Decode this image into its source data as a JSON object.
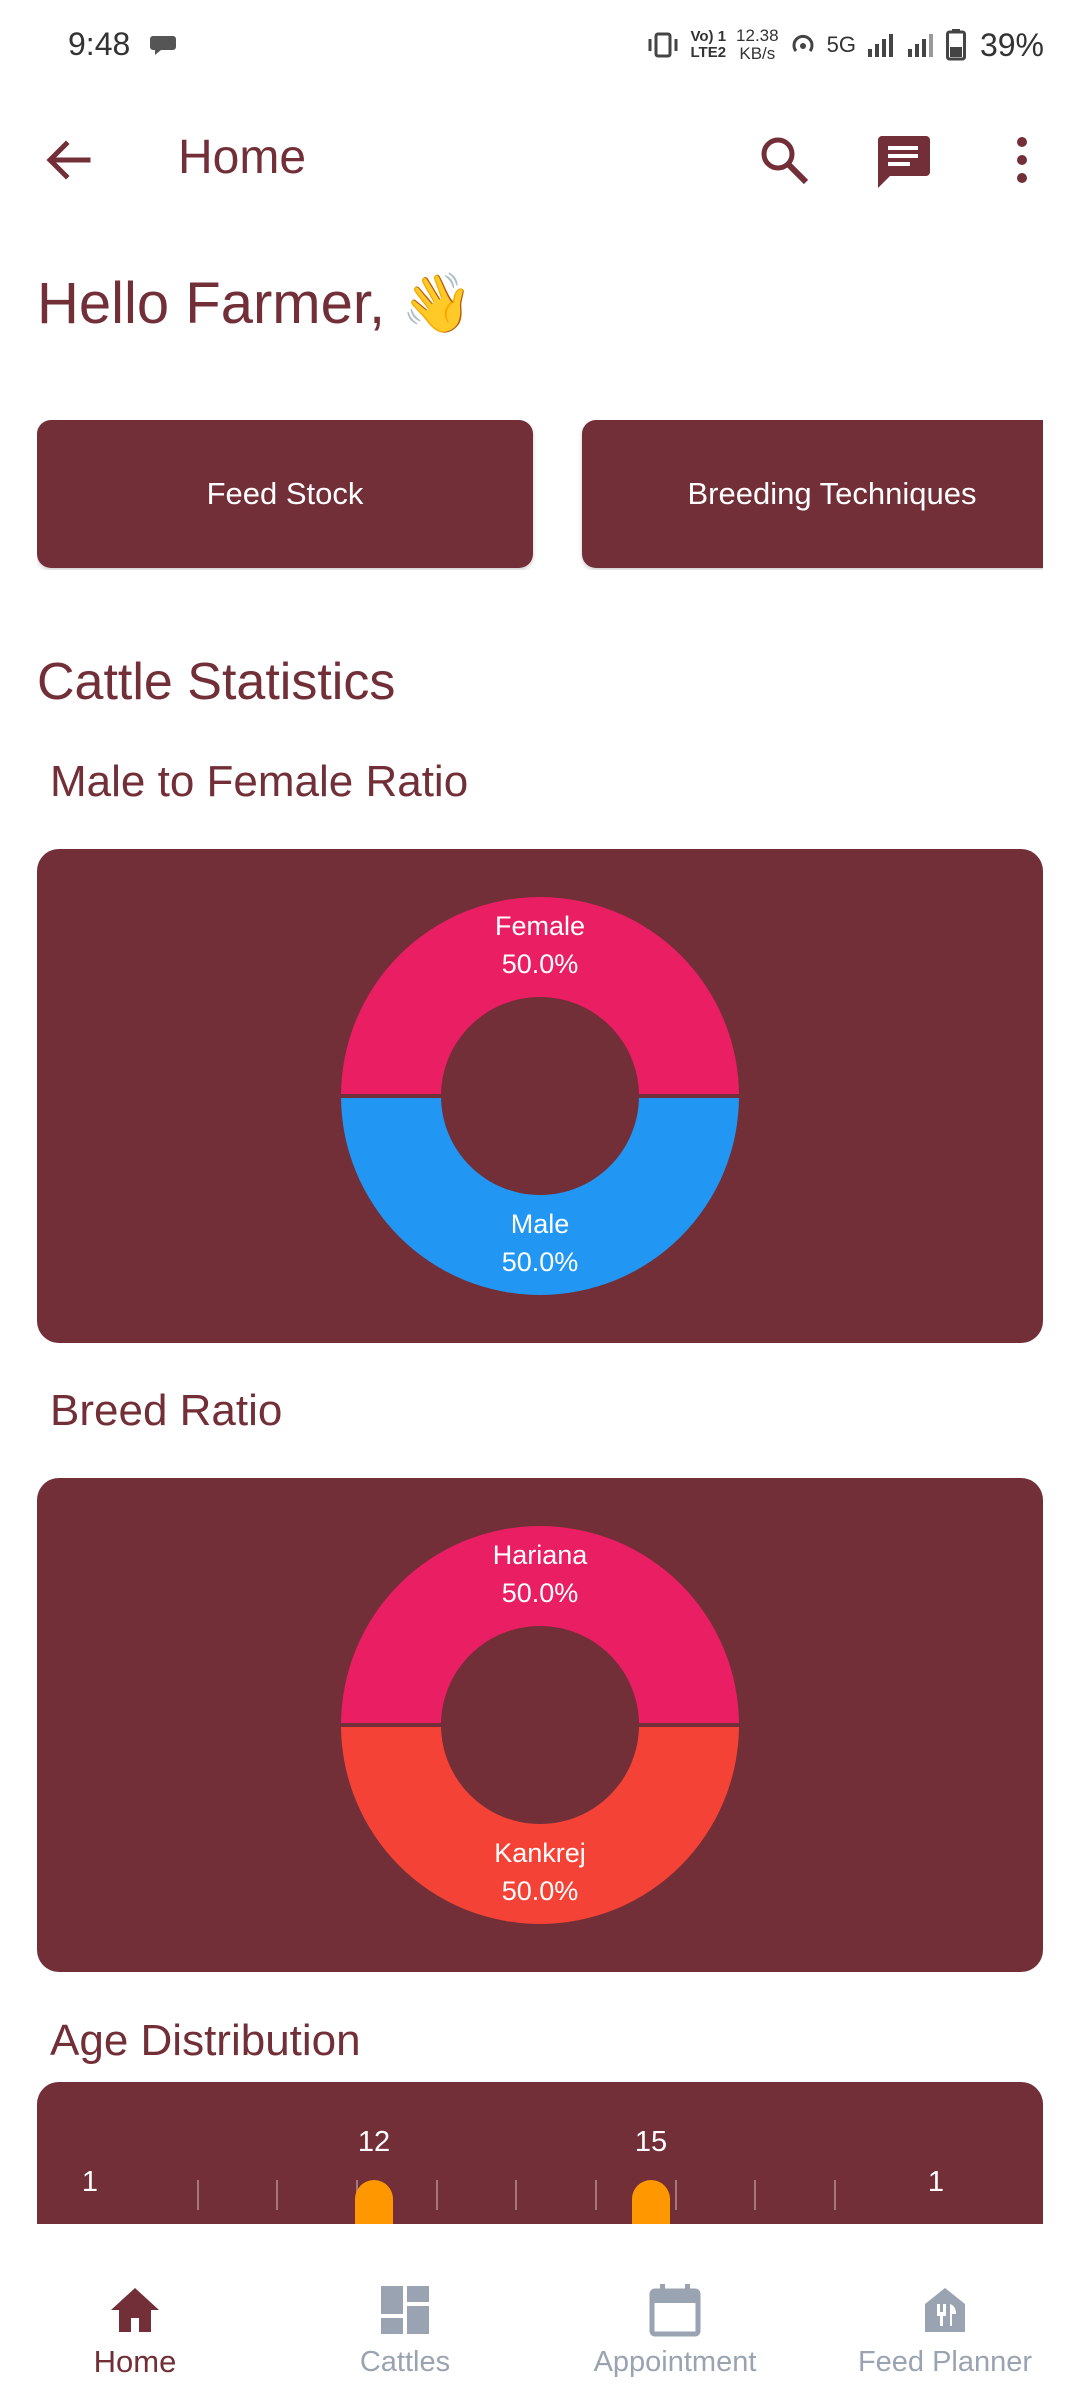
{
  "status_bar": {
    "time": "9:48",
    "network_line1": "Vo) 1",
    "network_line2": "LTE2",
    "speed_value": "12.38",
    "speed_unit": "KB/s",
    "network_type": "5G",
    "battery": "39%"
  },
  "app_bar": {
    "title": "Home",
    "icons": [
      "arrow-back-icon",
      "search-icon",
      "chat-icon",
      "more-vert-icon"
    ]
  },
  "greeting": "Hello Farmer, 👋",
  "quick_actions": [
    "Feed Stock",
    "Breeding Techniques"
  ],
  "statistics": {
    "title": "Cattle Statistics",
    "gender_title": "Male to Female Ratio",
    "breed_title": "Breed Ratio",
    "age_title": "Age Distribution"
  },
  "chart_data": [
    {
      "type": "pie",
      "labels": [
        "Female",
        "Male"
      ],
      "values": [
        50.0,
        50.0
      ],
      "value_labels": [
        "50.0%",
        "50.0%"
      ],
      "colors": [
        "#E91E63",
        "#2196F3"
      ]
    },
    {
      "type": "pie",
      "labels": [
        "Hariana",
        "Kankrej"
      ],
      "values": [
        50.0,
        50.0
      ],
      "value_labels": [
        "50.0%",
        "50.0%"
      ],
      "colors": [
        "#E91E63",
        "#F44336"
      ]
    },
    {
      "type": "bar",
      "value_labels": [
        "1",
        "12",
        "15",
        "1"
      ],
      "bar_color": "#FF9800"
    }
  ],
  "bottom_nav": [
    {
      "label": "Home",
      "icon": "home-icon",
      "active": true
    },
    {
      "label": "Cattles",
      "icon": "dashboard-icon",
      "active": false
    },
    {
      "label": "Appointment",
      "icon": "calendar-icon",
      "active": false
    },
    {
      "label": "Feed Planner",
      "icon": "feed-planner-icon",
      "active": false
    }
  ],
  "colors": {
    "primary": "#722F37",
    "inactive_nav": "#9AA3B2"
  }
}
